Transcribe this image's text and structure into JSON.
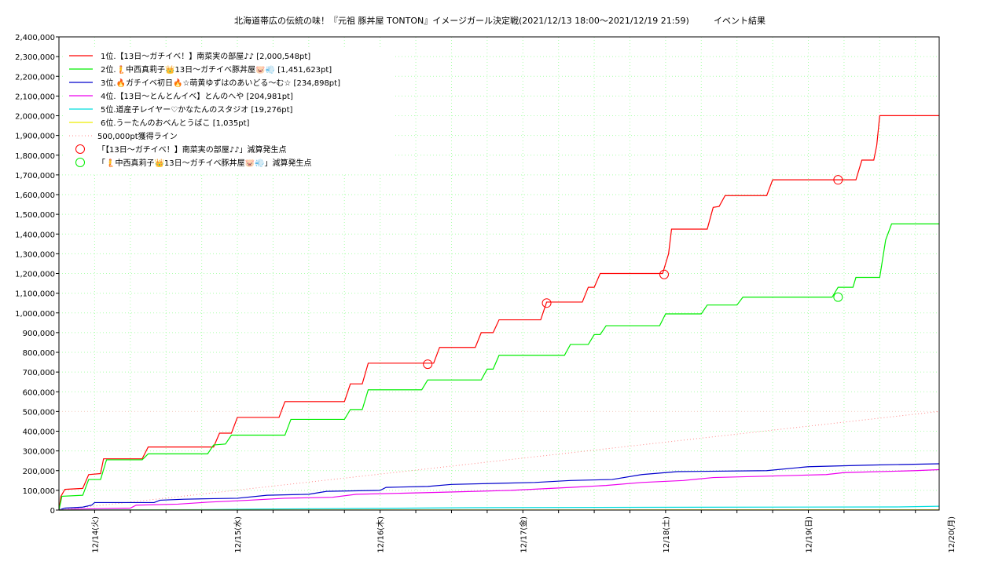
{
  "chart_data": {
    "type": "line",
    "title": "北海道帯広の伝統の味！『元祖 豚丼屋 TONTON』イメージガール決定戦(2021/12/13 18:00～2021/12/19 21:59)",
    "subtitle": "イベント結果",
    "xlabel": "",
    "ylabel": "",
    "ylim": [
      0,
      2400000
    ],
    "xlim": [
      "2021/12/13 18:00",
      "2021/12/19 22:00"
    ],
    "grid": true,
    "legend_position": "top-left",
    "y_ticks": [
      0,
      100000,
      200000,
      300000,
      400000,
      500000,
      600000,
      700000,
      800000,
      900000,
      1000000,
      1100000,
      1200000,
      1300000,
      1400000,
      1500000,
      1600000,
      1700000,
      1800000,
      1900000,
      2000000,
      2100000,
      2200000,
      2300000,
      2400000
    ],
    "y_tick_labels": [
      "0",
      "100,000",
      "200,000",
      "300,000",
      "400,000",
      "500,000",
      "600,000",
      "700,000",
      "800,000",
      "900,000",
      "1,000,000",
      "1,100,000",
      "1,200,000",
      "1,300,000",
      "1,400,000",
      "1,500,000",
      "1,600,000",
      "1,700,000",
      "1,800,000",
      "1,900,000",
      "2,000,000",
      "2,100,000",
      "2,200,000",
      "2,300,000",
      "2,400,000"
    ],
    "x_ticks": [
      {
        "label": "12/14(火)",
        "t": "2021/12/14 00:00"
      },
      {
        "label": "12/15(水)",
        "t": "2021/12/15 00:00"
      },
      {
        "label": "12/16(木)",
        "t": "2021/12/16 00:00"
      },
      {
        "label": "12/17(金)",
        "t": "2021/12/17 00:00"
      },
      {
        "label": "12/18(土)",
        "t": "2021/12/18 00:00"
      },
      {
        "label": "12/19(日)",
        "t": "2021/12/19 00:00"
      },
      {
        "label": "12/20(月)",
        "t": "2021/12/20 00:00"
      }
    ],
    "series": [
      {
        "name": "1位.【13日～ガチイベ！】南菜実の部屋♪♪ [2,000,548pt]",
        "color": "#ff0000",
        "points": [
          [
            "2021/12/13 18:00",
            0
          ],
          [
            "2021/12/13 18:20",
            70000
          ],
          [
            "2021/12/13 19:00",
            105000
          ],
          [
            "2021/12/13 22:00",
            110000
          ],
          [
            "2021/12/13 23:00",
            180000
          ],
          [
            "2021/12/14 01:00",
            185000
          ],
          [
            "2021/12/14 01:30",
            260000
          ],
          [
            "2021/12/14 08:00",
            260000
          ],
          [
            "2021/12/14 09:00",
            320000
          ],
          [
            "2021/12/14 20:00",
            320000
          ],
          [
            "2021/12/14 21:00",
            390000
          ],
          [
            "2021/12/14 23:00",
            390000
          ],
          [
            "2021/12/15 00:00",
            470000
          ],
          [
            "2021/12/15 07:00",
            470000
          ],
          [
            "2021/12/15 08:00",
            550000
          ],
          [
            "2021/12/15 18:00",
            550000
          ],
          [
            "2021/12/15 19:00",
            640000
          ],
          [
            "2021/12/15 21:00",
            640000
          ],
          [
            "2021/12/15 22:00",
            745000
          ],
          [
            "2021/12/16 09:00",
            745000
          ],
          [
            "2021/12/16 10:00",
            825000
          ],
          [
            "2021/12/16 16:00",
            825000
          ],
          [
            "2021/12/16 17:00",
            900000
          ],
          [
            "2021/12/16 19:00",
            900000
          ],
          [
            "2021/12/16 20:00",
            965000
          ],
          [
            "2021/12/17 03:00",
            965000
          ],
          [
            "2021/12/17 04:00",
            1055000
          ],
          [
            "2021/12/17 10:00",
            1055000
          ],
          [
            "2021/12/17 11:00",
            1130000
          ],
          [
            "2021/12/17 12:00",
            1130000
          ],
          [
            "2021/12/17 13:00",
            1200000
          ],
          [
            "2021/12/17 23:30",
            1200000
          ],
          [
            "2021/12/18 00:30",
            1300000
          ],
          [
            "2021/12/18 01:00",
            1425000
          ],
          [
            "2021/12/18 07:00",
            1425000
          ],
          [
            "2021/12/18 08:00",
            1535000
          ],
          [
            "2021/12/18 09:00",
            1540000
          ],
          [
            "2021/12/18 10:00",
            1595000
          ],
          [
            "2021/12/18 17:00",
            1595000
          ],
          [
            "2021/12/18 18:00",
            1675000
          ],
          [
            "2021/12/19 08:00",
            1675000
          ],
          [
            "2021/12/19 09:00",
            1775000
          ],
          [
            "2021/12/19 11:00",
            1775000
          ],
          [
            "2021/12/19 11:30",
            1850000
          ],
          [
            "2021/12/19 12:00",
            2000548
          ],
          [
            "2021/12/19 22:00",
            2000548
          ]
        ]
      },
      {
        "name": "2位.🧜中西真莉子👑13日～ガチイベ豚丼屋🐷💨 [1,451,623pt]",
        "color": "#00ee00",
        "points": [
          [
            "2021/12/13 18:00",
            0
          ],
          [
            "2021/12/13 18:30",
            70000
          ],
          [
            "2021/12/13 22:00",
            75000
          ],
          [
            "2021/12/13 23:00",
            155000
          ],
          [
            "2021/12/14 01:00",
            155000
          ],
          [
            "2021/12/14 02:00",
            255000
          ],
          [
            "2021/12/14 08:00",
            255000
          ],
          [
            "2021/12/14 09:00",
            285000
          ],
          [
            "2021/12/14 19:00",
            285000
          ],
          [
            "2021/12/14 20:00",
            330000
          ],
          [
            "2021/12/14 22:00",
            335000
          ],
          [
            "2021/12/14 23:00",
            380000
          ],
          [
            "2021/12/15 08:00",
            380000
          ],
          [
            "2021/12/15 09:00",
            460000
          ],
          [
            "2021/12/15 18:00",
            460000
          ],
          [
            "2021/12/15 19:00",
            510000
          ],
          [
            "2021/12/15 21:00",
            510000
          ],
          [
            "2021/12/15 22:00",
            610000
          ],
          [
            "2021/12/16 07:00",
            610000
          ],
          [
            "2021/12/16 08:00",
            660000
          ],
          [
            "2021/12/16 17:00",
            660000
          ],
          [
            "2021/12/16 18:00",
            715000
          ],
          [
            "2021/12/16 19:00",
            715000
          ],
          [
            "2021/12/16 20:00",
            785000
          ],
          [
            "2021/12/17 07:00",
            785000
          ],
          [
            "2021/12/17 08:00",
            840000
          ],
          [
            "2021/12/17 11:00",
            840000
          ],
          [
            "2021/12/17 12:00",
            890000
          ],
          [
            "2021/12/17 13:00",
            890000
          ],
          [
            "2021/12/17 14:00",
            935000
          ],
          [
            "2021/12/17 23:00",
            935000
          ],
          [
            "2021/12/18 00:00",
            995000
          ],
          [
            "2021/12/18 06:00",
            995000
          ],
          [
            "2021/12/18 07:00",
            1040000
          ],
          [
            "2021/12/18 12:00",
            1040000
          ],
          [
            "2021/12/18 13:00",
            1080000
          ],
          [
            "2021/12/19 04:00",
            1080000
          ],
          [
            "2021/12/19 05:00",
            1130000
          ],
          [
            "2021/12/19 07:30",
            1130000
          ],
          [
            "2021/12/19 08:00",
            1180000
          ],
          [
            "2021/12/19 12:00",
            1180000
          ],
          [
            "2021/12/19 13:00",
            1370000
          ],
          [
            "2021/12/19 14:00",
            1451623
          ],
          [
            "2021/12/19 22:00",
            1451623
          ]
        ]
      },
      {
        "name": "3位.🔥ガチイベ初日🔥☆萌黄ゆずはのあいどる～む☆ [234,898pt]",
        "color": "#0000cc",
        "points": [
          [
            "2021/12/13 18:00",
            0
          ],
          [
            "2021/12/13 19:00",
            10000
          ],
          [
            "2021/12/13 22:00",
            15000
          ],
          [
            "2021/12/13 23:30",
            25000
          ],
          [
            "2021/12/14 00:00",
            38000
          ],
          [
            "2021/12/14 10:00",
            38000
          ],
          [
            "2021/12/14 11:00",
            50000
          ],
          [
            "2021/12/14 15:00",
            55000
          ],
          [
            "2021/12/14 20:00",
            58000
          ],
          [
            "2021/12/15 00:00",
            60000
          ],
          [
            "2021/12/15 05:00",
            75000
          ],
          [
            "2021/12/15 12:00",
            80000
          ],
          [
            "2021/12/15 15:00",
            95000
          ],
          [
            "2021/12/16 00:00",
            100000
          ],
          [
            "2021/12/16 01:00",
            115000
          ],
          [
            "2021/12/16 08:00",
            120000
          ],
          [
            "2021/12/16 12:00",
            130000
          ],
          [
            "2021/12/17 02:00",
            140000
          ],
          [
            "2021/12/17 08:00",
            150000
          ],
          [
            "2021/12/17 15:00",
            155000
          ],
          [
            "2021/12/17 20:00",
            180000
          ],
          [
            "2021/12/18 00:00",
            190000
          ],
          [
            "2021/12/18 02:00",
            195000
          ],
          [
            "2021/12/18 17:00",
            200000
          ],
          [
            "2021/12/19 00:00",
            220000
          ],
          [
            "2021/12/19 10:00",
            228000
          ],
          [
            "2021/12/19 22:00",
            234898
          ]
        ]
      },
      {
        "name": "4位.【13日～とんとんイベ】とんのへや [204,981pt]",
        "color": "#ee00ee",
        "points": [
          [
            "2021/12/13 18:00",
            0
          ],
          [
            "2021/12/13 21:00",
            5000
          ],
          [
            "2021/12/14 06:00",
            10000
          ],
          [
            "2021/12/14 07:00",
            25000
          ],
          [
            "2021/12/14 14:00",
            30000
          ],
          [
            "2021/12/14 19:00",
            40000
          ],
          [
            "2021/12/15 02:00",
            50000
          ],
          [
            "2021/12/15 08:00",
            60000
          ],
          [
            "2021/12/15 16:00",
            65000
          ],
          [
            "2021/12/15 20:00",
            80000
          ],
          [
            "2021/12/16 10:00",
            90000
          ],
          [
            "2021/12/16 22:00",
            100000
          ],
          [
            "2021/12/17 08:00",
            115000
          ],
          [
            "2021/12/17 14:00",
            125000
          ],
          [
            "2021/12/17 20:00",
            140000
          ],
          [
            "2021/12/18 03:00",
            150000
          ],
          [
            "2021/12/18 08:00",
            165000
          ],
          [
            "2021/12/19 03:00",
            180000
          ],
          [
            "2021/12/19 06:00",
            190000
          ],
          [
            "2021/12/19 18:00",
            200000
          ],
          [
            "2021/12/19 22:00",
            204981
          ]
        ]
      },
      {
        "name": "5位.道産子レイヤー♡かなたんのスタジオ [19,276pt]",
        "color": "#00dddd",
        "points": [
          [
            "2021/12/13 18:00",
            0
          ],
          [
            "2021/12/14 17:00",
            2000
          ],
          [
            "2021/12/15 04:00",
            5000
          ],
          [
            "2021/12/15 20:00",
            8000
          ],
          [
            "2021/12/16 15:00",
            12000
          ],
          [
            "2021/12/17 20:00",
            14000
          ],
          [
            "2021/12/19 15:00",
            16000
          ],
          [
            "2021/12/19 22:00",
            19276
          ]
        ]
      },
      {
        "name": "6位.うーたんのおべんとうばこ [1,035pt]",
        "color": "#eeee00",
        "points": [
          [
            "2021/12/13 18:00",
            0
          ],
          [
            "2021/12/14 12:00",
            500
          ],
          [
            "2021/12/19 22:00",
            1035
          ]
        ]
      }
    ],
    "reference_line": {
      "name": "500,000pt獲得ライン",
      "color": "#ff8888",
      "points": [
        [
          "2021/12/13 18:00",
          0
        ],
        [
          "2021/12/19 22:00",
          500000
        ]
      ]
    },
    "markers": [
      {
        "name": "「【13日～ガチイベ！】南菜実の部屋♪♪」減算発生点",
        "color": "#ff0000",
        "points": [
          [
            "2021/12/16 08:00",
            740000
          ],
          [
            "2021/12/17 04:00",
            1050000
          ],
          [
            "2021/12/17 23:45",
            1195000
          ],
          [
            "2021/12/19 05:00",
            1675000
          ]
        ]
      },
      {
        "name": "「🧜中西真莉子👑13日～ガチイベ豚丼屋🐷💨」減算発生点",
        "color": "#00ee00",
        "points": [
          [
            "2021/12/19 05:00",
            1080000
          ]
        ]
      }
    ]
  }
}
